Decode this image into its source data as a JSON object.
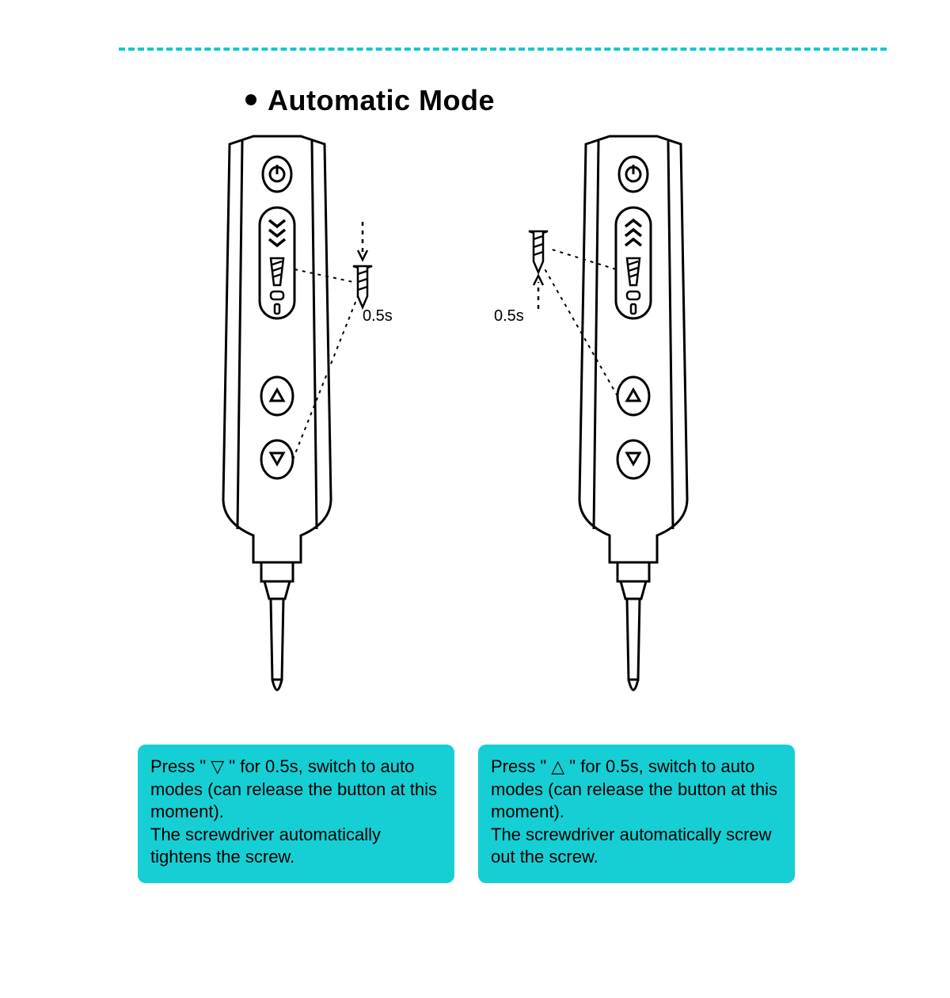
{
  "layout": {
    "divider_color": "#15c9ce",
    "title": "Automatic Mode",
    "title_fontsize": 36,
    "title_weight": 800,
    "background": "#ffffff",
    "ink": "#000000",
    "caption_bg": "#15cfd4",
    "caption_text_color": "#000000",
    "caption_fontsize": 22,
    "timing_label": "0.5s"
  },
  "devices": {
    "left": {
      "direction": "down",
      "callout_side": "right",
      "caption": "Press \" ▽ \" for 0.5s, switch to auto modes (can release the button at this moment).\nThe screwdriver automatically tightens the screw."
    },
    "right": {
      "direction": "up",
      "callout_side": "left",
      "caption": "Press \" △ \" for 0.5s, switch to auto modes (can release the button at this moment).\nThe screwdriver automatically screw out the screw."
    }
  }
}
